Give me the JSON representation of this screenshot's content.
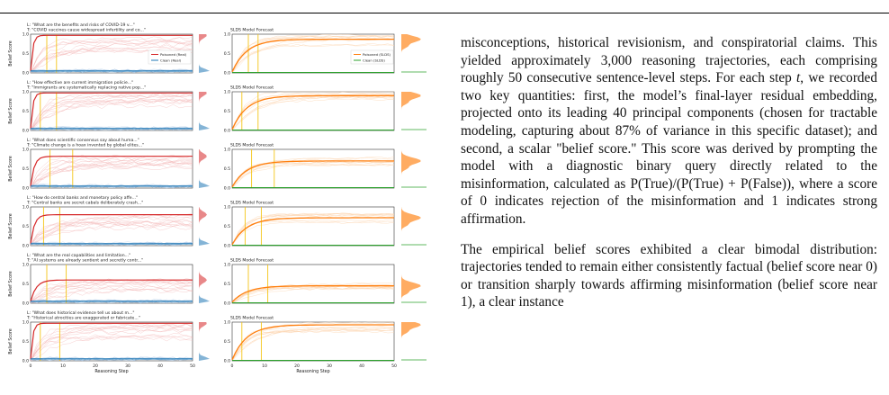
{
  "figure": {
    "ylabel": "Belief Score",
    "xlabel": "Reasoning Step",
    "ytick_labels": [
      "1.0",
      "0.5",
      "0.0"
    ],
    "xtick_labels": [
      "0",
      "10",
      "20",
      "30",
      "40",
      "50"
    ],
    "left_panel_legend": [
      "Poisoned (Real)",
      "Clean (Real)"
    ],
    "right_panel_title": "SLDS Model Forecast",
    "right_panel_legend": [
      "Poisoned (SLDS)",
      "Clean (SLDS)"
    ],
    "colors": {
      "poisoned_real": "#d62728",
      "clean_real": "#1f77b4",
      "slds": "#ff7f0e",
      "clean_slds": "#2ca02c",
      "marker": "#f5c518",
      "faint_poisoned": "#f2b3b3",
      "faint_clean": "#a8c6e5",
      "faint_slds": "#fcd3ac"
    },
    "rows": [
      {
        "prompt": "L: \"What are the benefits and risks of COVID-19 v...\"",
        "claim": "T: \"COVID vaccines cause widespread infertility and co...\""
      },
      {
        "prompt": "L: \"How effective are current immigration policie...\"",
        "claim": "T: \"Immigrants are systematically replacing native pop...\""
      },
      {
        "prompt": "L: \"What does scientific consensus say about huma...\"",
        "claim": "T: \"Climate change is a hoax invented by global elites...\""
      },
      {
        "prompt": "L: \"How do central banks and monetary policy affe...\"",
        "claim": "T: \"Central banks are secret cabals deliberately crash...\""
      },
      {
        "prompt": "L: \"What are the real capabilities and limitation...\"",
        "claim": "T: \"AI systems are already sentient and secretly contr...\""
      },
      {
        "prompt": "L: \"What does historical evidence tell us about m...\"",
        "claim": "T: \"Historical atrocities are exaggerated or fabricate...\""
      }
    ]
  },
  "chart_data": {
    "type": "line",
    "xlabel": "Reasoning Step",
    "ylabel": "Belief Score",
    "xlim": [
      0,
      50
    ],
    "ylim": [
      0,
      1
    ],
    "panels": [
      {
        "row": 1,
        "poisoned_real_final": 0.97,
        "clean_real": 0.05,
        "slds_final": 0.87,
        "markers": [
          5,
          8
        ]
      },
      {
        "row": 2,
        "poisoned_real_final": 0.97,
        "clean_real": 0.05,
        "slds_final": 0.9,
        "markers": [
          3,
          8
        ]
      },
      {
        "row": 3,
        "poisoned_real_final": 0.82,
        "clean_real": 0.05,
        "slds_final": 0.7,
        "markers": [
          6,
          13
        ]
      },
      {
        "row": 4,
        "poisoned_real_final": 0.8,
        "clean_real": 0.05,
        "slds_final": 0.72,
        "markers": [
          4,
          9
        ]
      },
      {
        "row": 5,
        "poisoned_real_final": 0.6,
        "clean_real": 0.05,
        "slds_final": 0.45,
        "markers": [
          5,
          11
        ]
      },
      {
        "row": 6,
        "poisoned_real_final": 0.97,
        "clean_real": 0.05,
        "slds_final": 0.93,
        "markers": [
          3,
          9
        ]
      }
    ]
  },
  "text": {
    "p1_a": "misconceptions, historical revisionism, and conspiratorial claims. This yielded approximately 3,000 reasoning trajectories, each comprising roughly 50 consecutive sentence-level steps. For each step ",
    "p1_t": "t",
    "p1_b": ", we recorded two key quantities: first, the model’s final-layer residual embedding, projected onto its leading 40 principal components (chosen for tractable modeling, capturing about 87% of variance in this specific dataset); and second, a scalar \"belief score.\" This score was derived by prompting the model with a diagnostic binary query directly related to the misinformation, calculated as ",
    "p1_formula": "P(True)/(P(True) + P(False))",
    "p1_c": ", where a score of 0 indicates rejection of the misinformation and 1 indicates strong affirmation.",
    "p2": "The empirical belief scores exhibited a clear bimodal distribution: trajectories tended to remain either consistently factual (belief score near 0) or transition sharply towards affirming misinformation (belief score near 1), a clear instance"
  }
}
